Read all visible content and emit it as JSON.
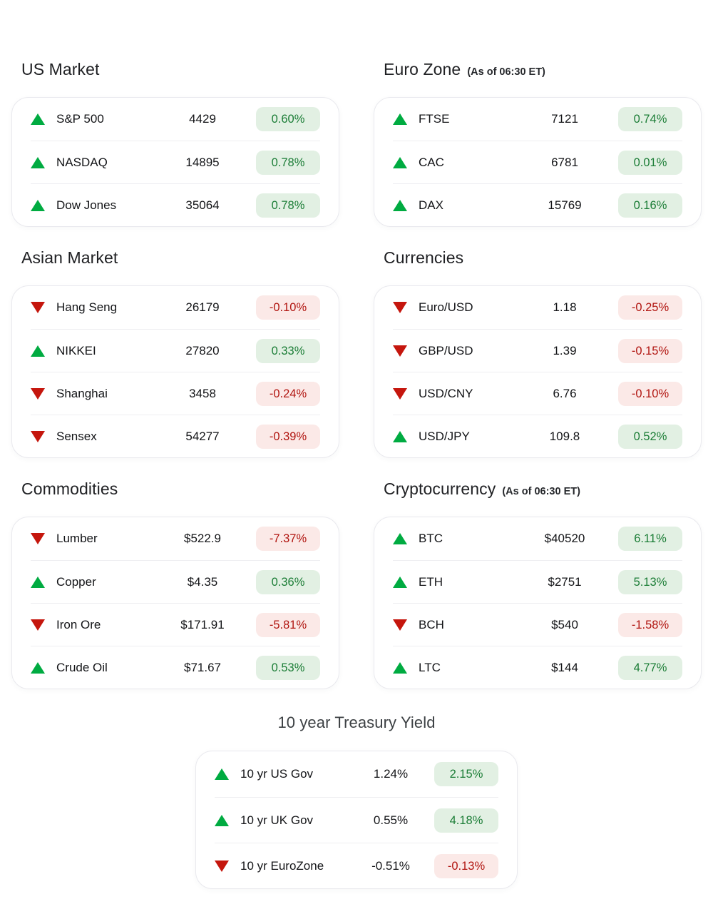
{
  "colors": {
    "up_triangle": "#00ab41",
    "down_triangle": "#c5160d",
    "badge_up_bg": "#e2f0e3",
    "badge_up_text": "#1b7d36",
    "badge_down_bg": "#fbe9e7",
    "badge_down_text": "#b11510"
  },
  "sections": [
    {
      "title": "US Market",
      "rows": [
        {
          "dir": "up",
          "label": "S&P 500",
          "value": "4429",
          "change": "0.60%"
        },
        {
          "dir": "up",
          "label": "NASDAQ",
          "value": "14895",
          "change": "0.78%"
        },
        {
          "dir": "up",
          "label": "Dow Jones",
          "value": "35064",
          "change": "0.78%"
        }
      ]
    },
    {
      "title": "Euro Zone",
      "subtitle": "(As of 06:30 ET)",
      "rows": [
        {
          "dir": "up",
          "label": "FTSE",
          "value": "7121",
          "change": "0.74%"
        },
        {
          "dir": "up",
          "label": "CAC",
          "value": "6781",
          "change": "0.01%"
        },
        {
          "dir": "up",
          "label": "DAX",
          "value": "15769",
          "change": "0.16%"
        }
      ]
    },
    {
      "title": "Asian Market",
      "rows": [
        {
          "dir": "down",
          "label": "Hang Seng",
          "value": "26179",
          "change": "-0.10%"
        },
        {
          "dir": "up",
          "label": "NIKKEI",
          "value": "27820",
          "change": "0.33%"
        },
        {
          "dir": "down",
          "label": "Shanghai",
          "value": "3458",
          "change": "-0.24%"
        },
        {
          "dir": "down",
          "label": "Sensex",
          "value": "54277",
          "change": "-0.39%"
        }
      ]
    },
    {
      "title": "Currencies",
      "rows": [
        {
          "dir": "down",
          "label": "Euro/USD",
          "value": "1.18",
          "change": "-0.25%"
        },
        {
          "dir": "down",
          "label": "GBP/USD",
          "value": "1.39",
          "change": "-0.15%"
        },
        {
          "dir": "down",
          "label": "USD/CNY",
          "value": "6.76",
          "change": "-0.10%"
        },
        {
          "dir": "up",
          "label": "USD/JPY",
          "value": "109.8",
          "change": "0.52%"
        }
      ]
    },
    {
      "title": "Commodities",
      "rows": [
        {
          "dir": "down",
          "label": "Lumber",
          "value": "$522.9",
          "change": "-7.37%"
        },
        {
          "dir": "up",
          "label": "Copper",
          "value": "$4.35",
          "change": "0.36%"
        },
        {
          "dir": "down",
          "label": "Iron Ore",
          "value": "$171.91",
          "change": "-5.81%"
        },
        {
          "dir": "up",
          "label": "Crude Oil",
          "value": "$71.67",
          "change": "0.53%"
        }
      ]
    },
    {
      "title": "Cryptocurrency",
      "subtitle": "(As of 06:30 ET)",
      "rows": [
        {
          "dir": "up",
          "label": "BTC",
          "value": "$40520",
          "change": "6.11%"
        },
        {
          "dir": "up",
          "label": "ETH",
          "value": "$2751",
          "change": "5.13%"
        },
        {
          "dir": "down",
          "label": "BCH",
          "value": "$540",
          "change": "-1.58%"
        },
        {
          "dir": "up",
          "label": "LTC",
          "value": "$144",
          "change": "4.77%"
        }
      ]
    },
    {
      "title": "10 year Treasury Yield",
      "rows": [
        {
          "dir": "up",
          "label": "10 yr US Gov",
          "value": "1.24%",
          "change": "2.15%"
        },
        {
          "dir": "up",
          "label": "10 yr UK Gov",
          "value": "0.55%",
          "change": "4.18%"
        },
        {
          "dir": "down",
          "label": "10 yr EuroZone",
          "value": "-0.51%",
          "change": "-0.13%"
        }
      ]
    }
  ]
}
